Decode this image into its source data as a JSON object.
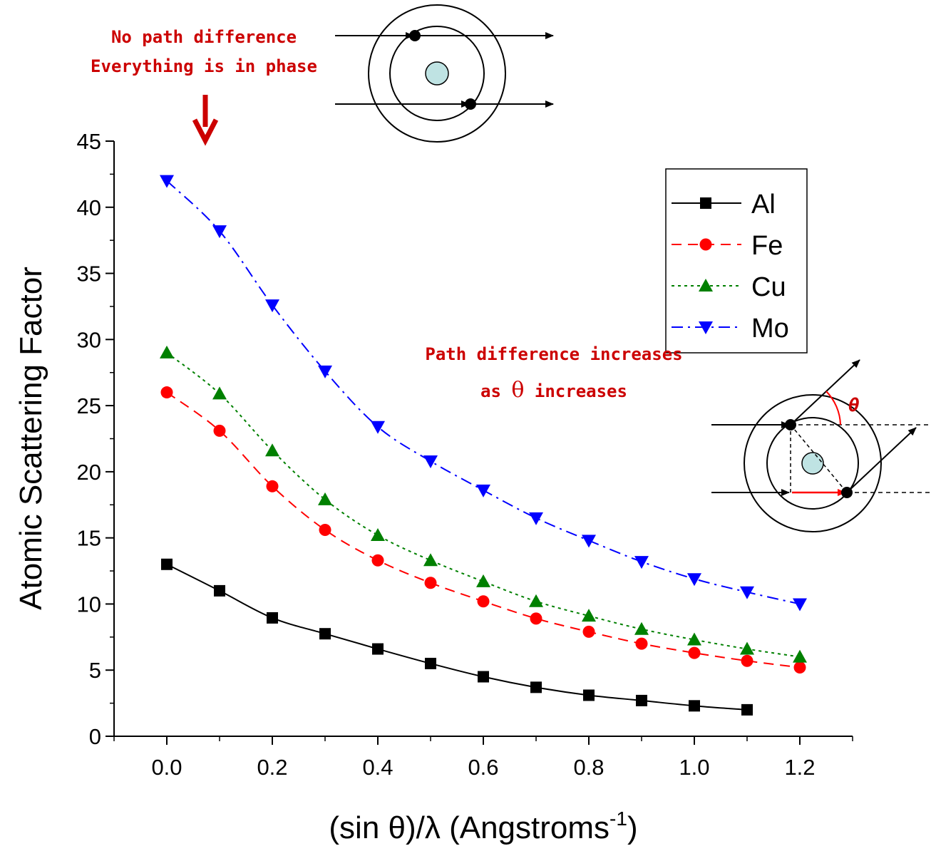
{
  "chart_data": {
    "type": "line",
    "xlabel": "(sin θ)/λ (Angstroms",
    "xlabel_exponent": "-1",
    "xlabel_close": ")",
    "ylabel": "Atomic Scattering Factor",
    "xlim": [
      -0.1,
      1.3
    ],
    "ylim": [
      0,
      45
    ],
    "x_ticks": [
      "0.0",
      "0.2",
      "0.4",
      "0.6",
      "0.8",
      "1.0",
      "1.2"
    ],
    "y_ticks": [
      "0",
      "5",
      "10",
      "15",
      "20",
      "25",
      "30",
      "35",
      "40",
      "45"
    ],
    "legend_position": "top-right",
    "series": [
      {
        "name": "Al",
        "color": "#000000",
        "marker": "square",
        "line": "solid",
        "x": [
          0.0,
          0.1,
          0.2,
          0.3,
          0.4,
          0.5,
          0.6,
          0.7,
          0.8,
          0.9,
          1.0,
          1.1
        ],
        "values": [
          13.0,
          11.0,
          8.95,
          7.75,
          6.6,
          5.5,
          4.5,
          3.7,
          3.1,
          2.7,
          2.3,
          2.0
        ]
      },
      {
        "name": "Fe",
        "color": "#ff0000",
        "marker": "circle",
        "line": "dash",
        "x": [
          0.0,
          0.1,
          0.2,
          0.3,
          0.4,
          0.5,
          0.6,
          0.7,
          0.8,
          0.9,
          1.0,
          1.1,
          1.2
        ],
        "values": [
          26.0,
          23.1,
          18.9,
          15.6,
          13.3,
          11.6,
          10.2,
          8.9,
          7.9,
          7.0,
          6.3,
          5.7,
          5.2
        ]
      },
      {
        "name": "Cu",
        "color": "#008000",
        "marker": "triangle-up",
        "line": "dot",
        "x": [
          0.0,
          0.1,
          0.2,
          0.3,
          0.4,
          0.5,
          0.6,
          0.7,
          0.8,
          0.9,
          1.0,
          1.1,
          1.2
        ],
        "values": [
          29.0,
          25.9,
          21.6,
          17.9,
          15.2,
          13.3,
          11.7,
          10.2,
          9.1,
          8.1,
          7.3,
          6.6,
          6.0
        ]
      },
      {
        "name": "Mo",
        "color": "#0000ff",
        "marker": "triangle-down",
        "line": "dash-dot",
        "x": [
          0.0,
          0.1,
          0.2,
          0.3,
          0.4,
          0.5,
          0.6,
          0.7,
          0.8,
          0.9,
          1.0,
          1.1,
          1.2
        ],
        "values": [
          42.0,
          38.2,
          32.6,
          27.6,
          23.4,
          20.8,
          18.6,
          16.5,
          14.8,
          13.2,
          11.9,
          10.9,
          10.0
        ]
      }
    ],
    "annotations": {
      "no_path_line1": "No path difference",
      "no_path_line2": "Everything is in phase",
      "path_diff_line1": "Path difference increases",
      "path_diff_line2_pre": "as",
      "path_diff_line2_theta": "θ",
      "path_diff_line2_post": "increases",
      "theta_label": "θ"
    }
  },
  "colors": {
    "annotation": "#cc0000",
    "nucleus_fill": "#bfe3e3"
  }
}
